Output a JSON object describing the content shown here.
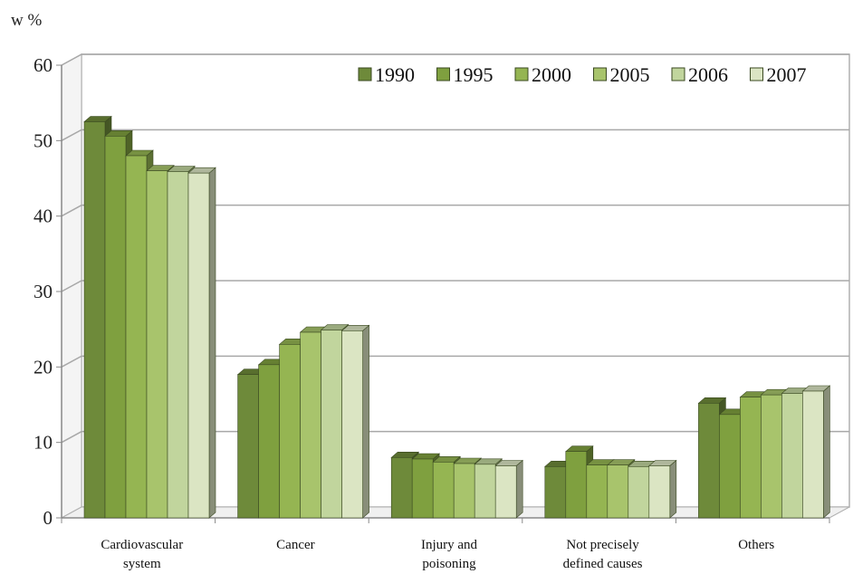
{
  "chart_data": {
    "type": "bar",
    "ylabel": "w %",
    "ylim": [
      0,
      60
    ],
    "yticks": [
      0,
      10,
      20,
      30,
      40,
      50,
      60
    ],
    "grid": true,
    "legend_position": "top-right",
    "categories": [
      [
        "Cardiovascular",
        "system"
      ],
      [
        "Cancer"
      ],
      [
        "Injury and",
        "poisoning"
      ],
      [
        "Not precisely",
        "defined causes"
      ],
      [
        "Others"
      ]
    ],
    "series": [
      {
        "name": "1990",
        "color": "#6e8a3a",
        "values": [
          52.5,
          19.0,
          8.0,
          6.8,
          15.2
        ]
      },
      {
        "name": "1995",
        "color": "#7fa03f",
        "values": [
          50.6,
          20.3,
          7.8,
          8.8,
          13.7
        ]
      },
      {
        "name": "2000",
        "color": "#95b552",
        "values": [
          48.0,
          23.0,
          7.4,
          7.0,
          16.0
        ]
      },
      {
        "name": "2005",
        "color": "#a8c46c",
        "values": [
          46.0,
          24.6,
          7.2,
          7.0,
          16.3
        ]
      },
      {
        "name": "2006",
        "color": "#c1d59d",
        "values": [
          45.9,
          24.9,
          7.1,
          6.8,
          16.5
        ]
      },
      {
        "name": "2007",
        "color": "#dbe5c3",
        "values": [
          45.7,
          24.8,
          6.9,
          6.9,
          16.8
        ]
      }
    ]
  }
}
